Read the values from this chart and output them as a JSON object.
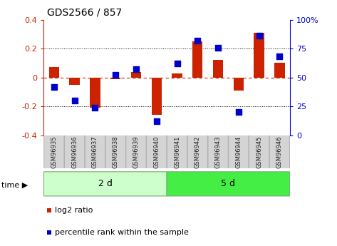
{
  "title": "GDS2566 / 857",
  "samples": [
    "GSM96935",
    "GSM96936",
    "GSM96937",
    "GSM96938",
    "GSM96939",
    "GSM96940",
    "GSM96941",
    "GSM96942",
    "GSM96943",
    "GSM96944",
    "GSM96945",
    "GSM96946"
  ],
  "log2_ratio": [
    0.07,
    -0.05,
    -0.21,
    -0.01,
    0.04,
    -0.26,
    0.03,
    0.25,
    0.12,
    -0.09,
    0.31,
    0.1
  ],
  "percentile_rank": [
    42,
    30,
    24,
    52,
    57,
    12,
    62,
    82,
    76,
    20,
    86,
    68
  ],
  "groups": [
    {
      "label": "2 d",
      "start": 0,
      "end": 6,
      "color": "#ccffcc"
    },
    {
      "label": "5 d",
      "start": 6,
      "end": 12,
      "color": "#44ee44"
    }
  ],
  "bar_color": "#cc2200",
  "dot_color": "#0000cc",
  "ylim_left": [
    -0.4,
    0.4
  ],
  "ylim_right": [
    0,
    100
  ],
  "yticks_left": [
    -0.4,
    -0.2,
    0.0,
    0.2,
    0.4
  ],
  "yticks_right": [
    0,
    25,
    50,
    75,
    100
  ],
  "ytick_labels_right": [
    "0",
    "25",
    "50",
    "75",
    "100%"
  ],
  "dotted_lines": [
    -0.2,
    0.2
  ],
  "dashed_zero": 0.0,
  "bar_width": 0.5,
  "dot_size": 35,
  "time_label": "time ▶",
  "legend_bar_label": "log2 ratio",
  "legend_dot_label": "percentile rank within the sample",
  "bg_color": "#ffffff",
  "plot_bg_color": "#ffffff",
  "fig_bg_color": "#ffffff"
}
